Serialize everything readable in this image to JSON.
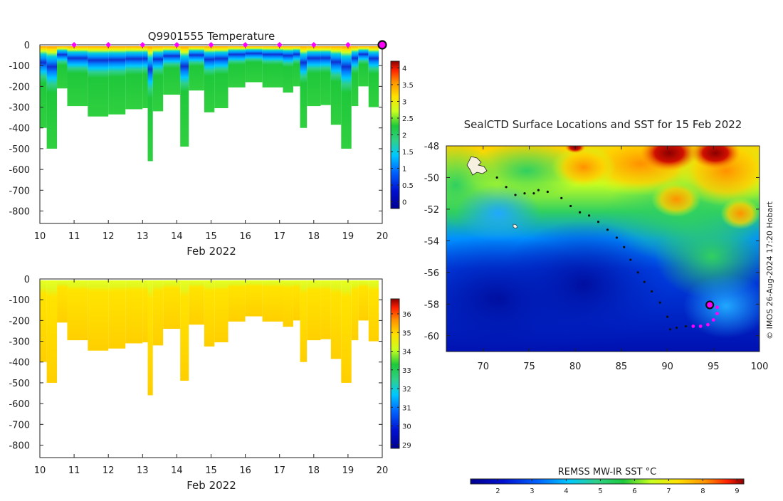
{
  "chart_data": [
    {
      "type": "heatmap",
      "title": "Q9901555  Temperature",
      "x_ticks": [
        "10",
        "11",
        "12",
        "13",
        "14",
        "15",
        "16",
        "17",
        "18",
        "19",
        "20"
      ],
      "x_range": [
        10,
        20
      ],
      "xlabel": "Feb 2022",
      "y_ticks": [
        "0",
        "-100",
        "-200",
        "-300",
        "-400",
        "-500",
        "-600",
        "-700",
        "-800"
      ],
      "y_range": [
        -860,
        0
      ],
      "colorbar_ticks": [
        "0",
        "0.5",
        "1",
        "1.5",
        "2",
        "2.5",
        "3",
        "3.5",
        "4"
      ],
      "colorbar_range": [
        -0.2,
        4.2
      ],
      "surface_markers_day": [
        11,
        12,
        13,
        14,
        15,
        16,
        17,
        18,
        19
      ],
      "current_marker_day": 20,
      "marker_color": "#ff00ff",
      "profiles": [
        {
          "day": 10.0,
          "depth": 400,
          "t_surface": 2.8
        },
        {
          "day": 10.2,
          "depth": 500,
          "t_surface": 2.7
        },
        {
          "day": 10.5,
          "depth": 210,
          "t_surface": 2.8
        },
        {
          "day": 10.8,
          "depth": 295,
          "t_surface": 2.9
        },
        {
          "day": 11.4,
          "depth": 345,
          "t_surface": 3.0
        },
        {
          "day": 12.0,
          "depth": 335,
          "t_surface": 3.1
        },
        {
          "day": 12.5,
          "depth": 310,
          "t_surface": 3.0
        },
        {
          "day": 13.0,
          "depth": 305,
          "t_surface": 3.1
        },
        {
          "day": 13.15,
          "depth": 560,
          "t_surface": 2.9
        },
        {
          "day": 13.3,
          "depth": 320,
          "t_surface": 3.1
        },
        {
          "day": 13.6,
          "depth": 240,
          "t_surface": 3.0
        },
        {
          "day": 14.1,
          "depth": 490,
          "t_surface": 2.9
        },
        {
          "day": 14.35,
          "depth": 220,
          "t_surface": 2.9
        },
        {
          "day": 14.8,
          "depth": 325,
          "t_surface": 2.9
        },
        {
          "day": 15.1,
          "depth": 305,
          "t_surface": 2.9
        },
        {
          "day": 15.5,
          "depth": 205,
          "t_surface": 2.9
        },
        {
          "day": 16.0,
          "depth": 180,
          "t_surface": 2.8
        },
        {
          "day": 16.5,
          "depth": 205,
          "t_surface": 2.8
        },
        {
          "day": 17.1,
          "depth": 230,
          "t_surface": 2.8
        },
        {
          "day": 17.4,
          "depth": 200,
          "t_surface": 2.7
        },
        {
          "day": 17.6,
          "depth": 400,
          "t_surface": 2.8
        },
        {
          "day": 17.8,
          "depth": 295,
          "t_surface": 2.7
        },
        {
          "day": 18.2,
          "depth": 290,
          "t_surface": 2.7
        },
        {
          "day": 18.5,
          "depth": 385,
          "t_surface": 2.6
        },
        {
          "day": 18.8,
          "depth": 500,
          "t_surface": 2.6
        },
        {
          "day": 19.1,
          "depth": 295,
          "t_surface": 2.5
        },
        {
          "day": 19.3,
          "depth": 200,
          "t_surface": 2.5
        },
        {
          "day": 19.6,
          "depth": 300,
          "t_surface": 2.5
        }
      ]
    },
    {
      "type": "heatmap",
      "title": "",
      "x_ticks": [
        "10",
        "11",
        "12",
        "13",
        "14",
        "15",
        "16",
        "17",
        "18",
        "19",
        "20"
      ],
      "x_range": [
        10,
        20
      ],
      "xlabel": "Feb 2022",
      "y_ticks": [
        "0",
        "-100",
        "-200",
        "-300",
        "-400",
        "-500",
        "-600",
        "-700",
        "-800"
      ],
      "y_range": [
        -860,
        0
      ],
      "colorbar_ticks": [
        "29",
        "30",
        "31",
        "32",
        "33",
        "34",
        "35",
        "36"
      ],
      "colorbar_range": [
        28.8,
        36.8
      ]
    },
    {
      "type": "heatmap",
      "title": "SealCTD Surface Locations and SST for 15 Feb 2022",
      "x_ticks": [
        "70",
        "75",
        "80",
        "85",
        "90",
        "95",
        "100"
      ],
      "x_range": [
        66,
        100
      ],
      "y_ticks": [
        "-48",
        "-50",
        "-52",
        "-54",
        "-56",
        "-58",
        "-60"
      ],
      "y_range": [
        -61,
        -48
      ],
      "colorbar_label": "REMSS MW-IR SST °C",
      "colorbar_ticks": [
        "2",
        "3",
        "4",
        "5",
        "6",
        "7",
        "8",
        "9"
      ],
      "colorbar_range": [
        1.2,
        9.2
      ],
      "track": [
        [
          71.5,
          -50.0
        ],
        [
          72.5,
          -50.6
        ],
        [
          73.5,
          -51.1
        ],
        [
          74.5,
          -51.0
        ],
        [
          75.5,
          -51.0
        ],
        [
          76.0,
          -50.8
        ],
        [
          77.0,
          -50.9
        ],
        [
          78.5,
          -51.3
        ],
        [
          79.5,
          -51.8
        ],
        [
          80.5,
          -52.2
        ],
        [
          81.5,
          -52.4
        ],
        [
          82.5,
          -52.8
        ],
        [
          83.5,
          -53.3
        ],
        [
          84.5,
          -53.8
        ],
        [
          85.3,
          -54.4
        ],
        [
          86.0,
          -55.2
        ],
        [
          86.8,
          -56.0
        ],
        [
          87.5,
          -56.6
        ],
        [
          88.3,
          -57.2
        ],
        [
          89.2,
          -57.9
        ],
        [
          90.0,
          -58.8
        ],
        [
          90.3,
          -59.6
        ],
        [
          91.0,
          -59.5
        ],
        [
          92.0,
          -59.4
        ]
      ],
      "recent_track": [
        [
          92.8,
          -59.4
        ],
        [
          93.6,
          -59.4
        ],
        [
          94.4,
          -59.3
        ],
        [
          95.0,
          -59.0
        ],
        [
          95.4,
          -58.6
        ],
        [
          95.4,
          -58.2
        ]
      ],
      "current_position": [
        94.6,
        -58.05
      ],
      "marker_color": "#ff00ff"
    }
  ],
  "credit": "© IMOS 26-Aug-2024 17:20 Hobart"
}
